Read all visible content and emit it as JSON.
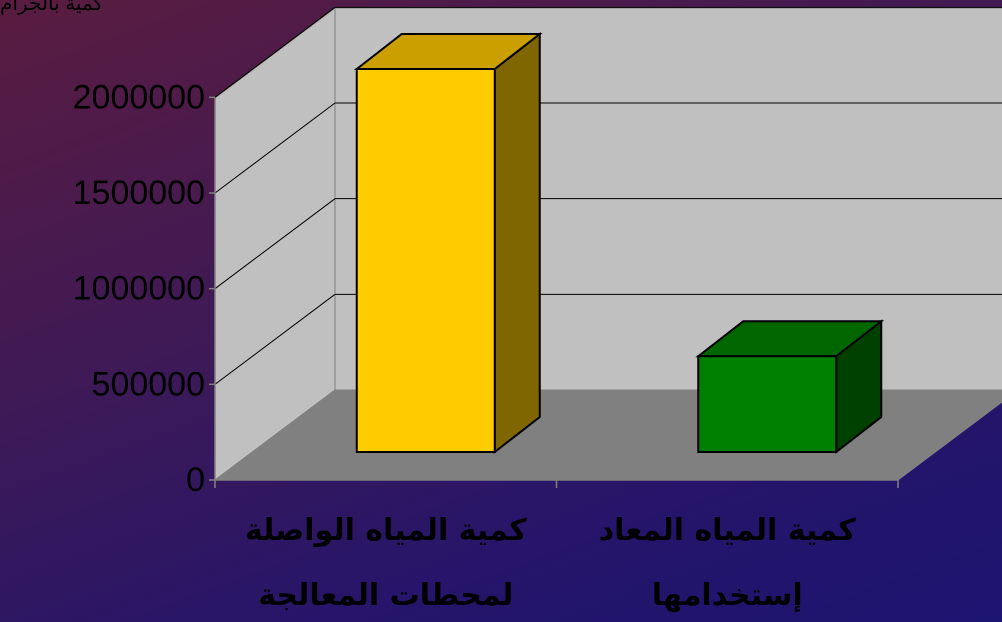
{
  "chart_data": {
    "type": "bar",
    "ylabel": "كمية بالجرام",
    "categories": [
      [
        "كمية المياه الواصلة",
        "لمحطات المعالجة"
      ],
      [
        "كمية المياه المعاد",
        "إستخدامها"
      ]
    ],
    "values": [
      2000000,
      500000
    ],
    "yticks": [
      0,
      500000,
      1000000,
      1500000,
      2000000
    ],
    "ylim": [
      0,
      2000000
    ],
    "grid": true,
    "colors": {
      "bar1_front": "#ffcc00",
      "bar1_top": "#cc9f00",
      "bar1_side": "#7f6600",
      "bar2_front": "#008000",
      "bar2_top": "#006600",
      "bar2_side": "#004000",
      "back_wall": "#c0c0c0",
      "floor": "#808080"
    }
  }
}
